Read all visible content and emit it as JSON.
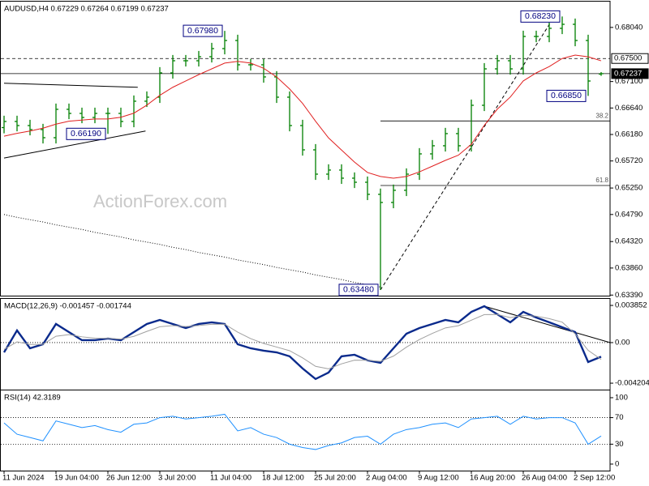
{
  "chart_data": [
    {
      "type": "ohlc",
      "title": "AUDUSD,H4  0.67229 0.67264 0.67199 0.67237",
      "watermark": "ActionForex.com",
      "color": "#008000",
      "categories": [
        "11 Jun 2024",
        null,
        null,
        null,
        "19 Jun 04:00",
        null,
        null,
        null,
        "26 Jun 12:00",
        null,
        null,
        null,
        "3 Jul 20:00",
        null,
        null,
        null,
        "11 Jul 04:00",
        null,
        null,
        null,
        "18 Jul 12:00",
        null,
        null,
        null,
        "25 Jul 20:00",
        null,
        null,
        null,
        "2 Aug 04:00",
        null,
        null,
        null,
        "9 Aug 12:00",
        null,
        null,
        null,
        "16 Aug 20:00",
        null,
        null,
        null,
        "26 Aug 04:00",
        null,
        null,
        null,
        "2 Sep 12:00",
        null,
        null
      ],
      "open": [
        0.663,
        0.66406,
        0.66335,
        0.66265,
        0.66124,
        0.66617,
        0.66546,
        0.66476,
        0.66546,
        0.66546,
        0.66406,
        0.66758,
        0.66828,
        0.6725,
        0.67461,
        0.67461,
        0.67531,
        0.67672,
        0.67813,
        0.67391,
        0.67391,
        0.6718,
        0.66828,
        0.66335,
        0.65913,
        0.65491,
        0.65562,
        0.65421,
        0.6535,
        0.6514,
        0.64999,
        0.6521,
        0.65491,
        0.65843,
        0.65984,
        0.66195,
        0.65984,
        0.66687,
        0.6732,
        0.67461,
        0.6732,
        0.67883,
        0.67883,
        0.68024,
        0.68094,
        0.67813,
        0.67229
      ],
      "high": [
        0.66506,
        0.66506,
        0.66435,
        0.66365,
        0.66717,
        0.66717,
        0.66646,
        0.66646,
        0.66646,
        0.66646,
        0.66858,
        0.66928,
        0.6735,
        0.67561,
        0.67561,
        0.67631,
        0.67772,
        0.6798,
        0.67913,
        0.67491,
        0.67491,
        0.6728,
        0.66928,
        0.66435,
        0.66013,
        0.65662,
        0.65662,
        0.65521,
        0.6545,
        0.6524,
        0.6531,
        0.65591,
        0.65943,
        0.66084,
        0.66295,
        0.66295,
        0.66787,
        0.6742,
        0.67561,
        0.67561,
        0.67983,
        0.67983,
        0.68124,
        0.6823,
        0.68194,
        0.67913,
        0.67264
      ],
      "low": [
        0.662,
        0.66235,
        0.66165,
        0.66024,
        0.66024,
        0.66446,
        0.66376,
        0.66376,
        0.6619,
        0.66306,
        0.66306,
        0.66658,
        0.66728,
        0.6715,
        0.67361,
        0.67361,
        0.67431,
        0.67572,
        0.67291,
        0.67291,
        0.6708,
        0.66728,
        0.66235,
        0.65813,
        0.65391,
        0.65391,
        0.65321,
        0.6525,
        0.6504,
        0.6348,
        0.64899,
        0.6511,
        0.65391,
        0.65743,
        0.65884,
        0.65884,
        0.65884,
        0.66587,
        0.6722,
        0.6722,
        0.6722,
        0.67783,
        0.67783,
        0.67924,
        0.67713,
        0.6685,
        0.67199
      ],
      "close": [
        0.66406,
        0.66335,
        0.66265,
        0.66124,
        0.66617,
        0.66546,
        0.66476,
        0.66546,
        0.66546,
        0.66406,
        0.66758,
        0.66828,
        0.6725,
        0.67461,
        0.67461,
        0.67531,
        0.67672,
        0.67813,
        0.67391,
        0.67391,
        0.6718,
        0.66828,
        0.66335,
        0.65913,
        0.65491,
        0.65562,
        0.65421,
        0.6535,
        0.6514,
        0.64999,
        0.6521,
        0.65491,
        0.65843,
        0.65984,
        0.66195,
        0.65984,
        0.66687,
        0.6732,
        0.67461,
        0.6732,
        0.67883,
        0.67883,
        0.68024,
        0.68094,
        0.67813,
        0.67109,
        0.67237
      ],
      "series": [
        {
          "color": "#e02020",
          "style": "solid",
          "values": [
            0.6615,
            0.662,
            0.6624,
            0.6629,
            0.6636,
            0.6641,
            0.6643,
            0.6645,
            0.6645,
            0.6648,
            0.6655,
            0.6669,
            0.6686,
            0.67,
            0.6711,
            0.6722,
            0.6732,
            0.6742,
            0.6745,
            0.6742,
            0.6733,
            0.6718,
            0.6697,
            0.6672,
            0.6641,
            0.6612,
            0.6591,
            0.657,
            0.6552,
            0.6545,
            0.6542,
            0.6545,
            0.6553,
            0.6563,
            0.6573,
            0.6582,
            0.6601,
            0.6634,
            0.6662,
            0.6683,
            0.6711,
            0.6725,
            0.6736,
            0.675,
            0.6756,
            0.6753,
            0.6746
          ]
        },
        {
          "color": "#000000",
          "style": "dotted",
          "values": [
            0.6479,
            0.6474,
            0.647,
            0.6466,
            0.6461,
            0.6457,
            0.6453,
            0.6448,
            0.6444,
            0.644,
            0.6435,
            0.6431,
            0.6427,
            0.6422,
            0.6418,
            0.6413,
            0.6409,
            0.6405,
            0.64,
            0.6396,
            0.6392,
            0.6387,
            0.6383,
            0.6379,
            0.6374,
            0.637,
            0.6366,
            0.6361,
            0.6357,
            0.6353,
            null,
            null,
            null,
            null,
            null,
            null,
            null,
            null,
            null,
            null,
            null,
            null,
            null,
            null,
            null,
            null,
            null
          ]
        }
      ],
      "ylim": [
        0.6338,
        0.6846
      ],
      "yticks": [
        {
          "value": 0.6804,
          "label": "0.68040"
        },
        {
          "value": 0.671,
          "label": "0.67100"
        },
        {
          "value": 0.6664,
          "label": "0.66640"
        },
        {
          "value": 0.6618,
          "label": "0.66180"
        },
        {
          "value": 0.6572,
          "label": "0.65720"
        },
        {
          "value": 0.6525,
          "label": "0.65250"
        },
        {
          "value": 0.6479,
          "label": "0.64790"
        },
        {
          "value": 0.6432,
          "label": "0.64320"
        },
        {
          "value": 0.6386,
          "label": "0.63860"
        },
        {
          "value": 0.6339,
          "label": "0.63390"
        }
      ],
      "hlines": [
        {
          "value": 0.675,
          "label": "0.67500",
          "style": "dashed",
          "label_style": "boxed"
        },
        {
          "value": 0.67237,
          "label": "0.67237",
          "style": "solid",
          "label_style": "filled"
        }
      ],
      "levels": [
        {
          "value": 0.66415,
          "label": "38.2",
          "from": 29
        },
        {
          "value": 0.65294,
          "label": "61.8",
          "from": 29
        }
      ],
      "trendlines": [
        {
          "x": [
            0,
            10.3
          ],
          "y": [
            0.6707,
            0.67
          ],
          "style": "solid"
        },
        {
          "x": [
            0,
            10.9
          ],
          "y": [
            0.6577,
            0.6624
          ],
          "style": "solid"
        },
        {
          "x": [
            29,
            42.4
          ],
          "y": [
            0.6348,
            0.6823
          ],
          "style": "dashed"
        }
      ],
      "annotations": [
        {
          "label": "0.67980",
          "value": 0.6798,
          "x": 17
        },
        {
          "label": "0.66190",
          "value": 0.6619,
          "x": 8
        },
        {
          "label": "0.63480",
          "value": 0.6348,
          "x": 29
        },
        {
          "label": "0.68230",
          "value": 0.6823,
          "x": 43
        },
        {
          "label": "0.66850",
          "value": 0.6685,
          "x": 45
        }
      ]
    },
    {
      "type": "line",
      "title": "MACD(12,26,9) -0.001457 -0.001744",
      "series": [
        {
          "color": "#0a2a8c",
          "style": "thick",
          "values": [
            -0.00101,
            0.00126,
            -0.00059,
            -0.00017,
            0.00193,
            0.00109,
            0.00025,
            0.00025,
            0.00042,
            0.00025,
            0.00109,
            0.00193,
            0.00235,
            0.00193,
            0.00151,
            0.00193,
            0.0021,
            0.00193,
            -0.00017,
            -0.00059,
            -0.00084,
            -0.00101,
            -0.00142,
            -0.00268,
            -0.00377,
            -0.0031,
            -0.00142,
            -0.00126,
            -0.00184,
            -0.0021,
            -0.00059,
            0.00092,
            0.00151,
            0.00193,
            0.00235,
            0.0021,
            0.00318,
            0.00377,
            0.00293,
            0.0021,
            0.00318,
            0.0026,
            0.0021,
            0.00159,
            0.00109,
            -0.00201,
            -0.00146
          ]
        },
        {
          "color": "#a0a0a0",
          "style": "solid",
          "values": [
            -0.0007,
            8e-05,
            -0.00019,
            -0.00018,
            0.00066,
            0.00083,
            0.0006,
            0.00046,
            0.00044,
            0.00036,
            0.00065,
            0.00116,
            0.00164,
            0.00176,
            0.00166,
            0.00177,
            0.0019,
            0.00191,
            0.00108,
            0.00041,
            -9e-05,
            -0.00046,
            -0.00084,
            -0.00158,
            -0.00246,
            -0.00272,
            -0.0022,
            -0.00182,
            -0.00183,
            -0.00194,
            -0.0014,
            -0.00047,
            0.00032,
            0.00096,
            0.00152,
            0.00175,
            0.00232,
            0.0029,
            0.00291,
            0.00259,
            0.00283,
            0.00274,
            0.00248,
            0.00212,
            0.0009,
            -0.0008,
            -0.00174
          ]
        }
      ],
      "ylim": [
        -0.00487,
        0.00436
      ],
      "yticks": [
        0.003852,
        {
          "value": 0,
          "label": "0.00"
        },
        -0.004204
      ],
      "hlines": [
        {
          "value": 0,
          "style": "dotted"
        }
      ],
      "trendlines": [
        {
          "x": [
            37,
            46.7
          ],
          "y": [
            0.00377,
            0
          ],
          "style": "solid"
        }
      ]
    },
    {
      "type": "line",
      "title": "RSI(14) 42.3189",
      "series": [
        {
          "color": "#1e90ff",
          "style": "solid",
          "values": [
            62,
            45,
            40,
            35,
            65,
            60,
            55,
            58,
            52,
            48,
            60,
            62,
            70,
            72,
            68,
            70,
            72,
            75,
            50,
            55,
            45,
            40,
            30,
            25,
            22,
            28,
            32,
            40,
            42,
            30,
            45,
            52,
            55,
            60,
            62,
            55,
            68,
            70,
            72,
            60,
            72,
            68,
            70,
            70,
            62,
            30,
            42.3189
          ]
        }
      ],
      "ylim": [
        -9.8,
        108.5
      ],
      "yticks": [
        100,
        70,
        30,
        0
      ],
      "hlines": [
        {
          "value": 70,
          "style": "dotted"
        },
        {
          "value": 30,
          "style": "dotted"
        }
      ]
    }
  ]
}
